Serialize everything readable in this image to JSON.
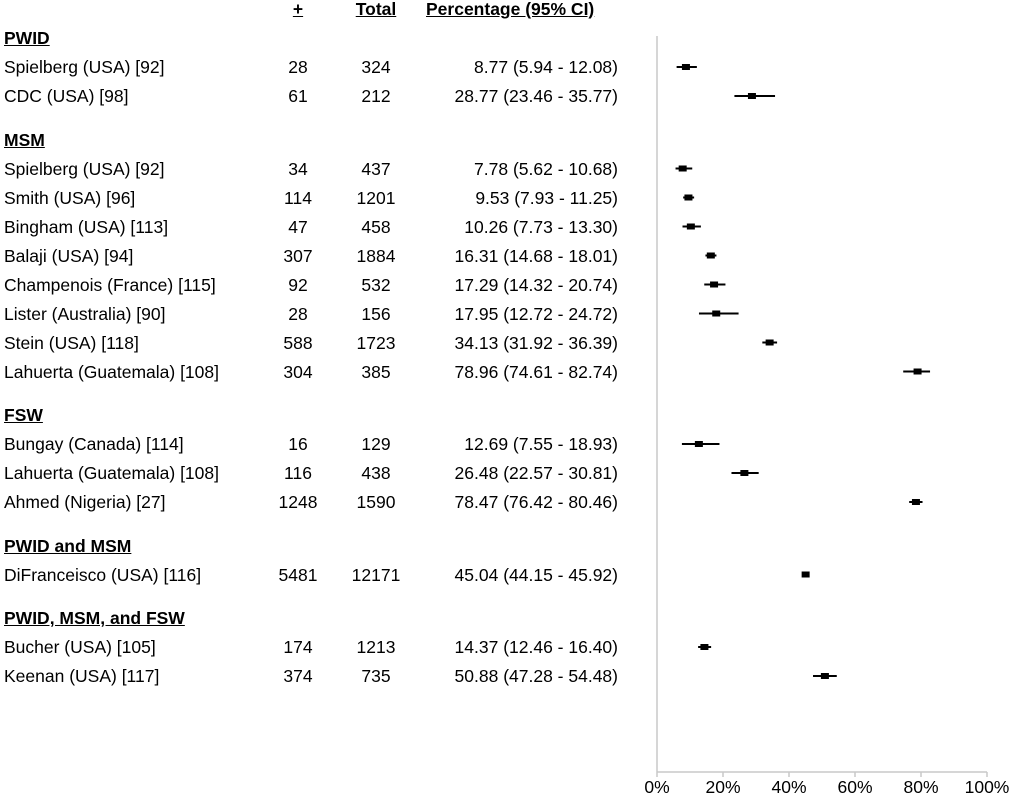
{
  "headers": {
    "positive": "+",
    "total": "Total",
    "percentage": "Percentage (95% CI)"
  },
  "chart_data": {
    "type": "forest",
    "xlim": [
      0,
      100
    ],
    "x_ticks": [
      "0%",
      "20%",
      "40%",
      "60%",
      "80%",
      "100%"
    ],
    "groups": [
      {
        "name": "PWID",
        "studies": [
          {
            "label": "Spielberg (USA) [92]",
            "positive": "28",
            "total": "324",
            "pct_text": "8.77 (5.94 - 12.08)",
            "est": 8.77,
            "lo": 5.94,
            "hi": 12.08
          },
          {
            "label": "CDC (USA) [98]",
            "positive": "61",
            "total": "212",
            "pct_text": "28.77 (23.46 - 35.77)",
            "est": 28.77,
            "lo": 23.46,
            "hi": 35.77
          }
        ]
      },
      {
        "name": "MSM",
        "studies": [
          {
            "label": "Spielberg (USA) [92]",
            "positive": "34",
            "total": "437",
            "pct_text": "7.78 (5.62 - 10.68)",
            "est": 7.78,
            "lo": 5.62,
            "hi": 10.68
          },
          {
            "label": "Smith (USA) [96]",
            "positive": "114",
            "total": "1201",
            "pct_text": "9.53 (7.93 - 11.25)",
            "est": 9.53,
            "lo": 7.93,
            "hi": 11.25
          },
          {
            "label": "Bingham (USA) [113]",
            "positive": "47",
            "total": "458",
            "pct_text": "10.26 (7.73 - 13.30)",
            "est": 10.26,
            "lo": 7.73,
            "hi": 13.3
          },
          {
            "label": "Balaji (USA) [94]",
            "positive": "307",
            "total": "1884",
            "pct_text": "16.31 (14.68 - 18.01)",
            "est": 16.31,
            "lo": 14.68,
            "hi": 18.01
          },
          {
            "label": "Champenois (France) [115]",
            "positive": "92",
            "total": "532",
            "pct_text": "17.29 (14.32 - 20.74)",
            "est": 17.29,
            "lo": 14.32,
            "hi": 20.74
          },
          {
            "label": "Lister (Australia) [90]",
            "positive": "28",
            "total": "156",
            "pct_text": "17.95 (12.72 - 24.72)",
            "est": 17.95,
            "lo": 12.72,
            "hi": 24.72
          },
          {
            "label": "Stein (USA) [118]",
            "positive": "588",
            "total": "1723",
            "pct_text": "34.13 (31.92 - 36.39)",
            "est": 34.13,
            "lo": 31.92,
            "hi": 36.39
          },
          {
            "label": "Lahuerta (Guatemala) [108]",
            "positive": "304",
            "total": "385",
            "pct_text": "78.96 (74.61 - 82.74)",
            "est": 78.96,
            "lo": 74.61,
            "hi": 82.74
          }
        ]
      },
      {
        "name": "FSW",
        "studies": [
          {
            "label": "Bungay (Canada) [114]",
            "positive": "16",
            "total": "129",
            "pct_text": "12.69 (7.55 - 18.93)",
            "est": 12.69,
            "lo": 7.55,
            "hi": 18.93
          },
          {
            "label": "Lahuerta (Guatemala) [108]",
            "positive": "116",
            "total": "438",
            "pct_text": "26.48 (22.57 - 30.81)",
            "est": 26.48,
            "lo": 22.57,
            "hi": 30.81
          },
          {
            "label": "Ahmed (Nigeria) [27]",
            "positive": "1248",
            "total": "1590",
            "pct_text": "78.47 (76.42 - 80.46)",
            "est": 78.47,
            "lo": 76.42,
            "hi": 80.46
          }
        ]
      },
      {
        "name": "PWID and MSM",
        "studies": [
          {
            "label": "DiFranceisco (USA) [116]",
            "positive": "5481",
            "total": "12171",
            "pct_text": "45.04 (44.15 - 45.92)",
            "est": 45.04,
            "lo": 44.15,
            "hi": 45.92
          }
        ]
      },
      {
        "name": "PWID, MSM, and FSW",
        "studies": [
          {
            "label": "Bucher (USA) [105]",
            "positive": "174",
            "total": "1213",
            "pct_text": "14.37 (12.46 - 16.40)",
            "est": 14.37,
            "lo": 12.46,
            "hi": 16.4
          },
          {
            "label": "Keenan (USA) [117]",
            "positive": "374",
            "total": "735",
            "pct_text": "50.88 (47.28 - 54.48)",
            "est": 50.88,
            "lo": 47.28,
            "hi": 54.48
          }
        ]
      }
    ]
  },
  "colors": {
    "marker": "#000000",
    "axis": "#c8c8c8"
  }
}
